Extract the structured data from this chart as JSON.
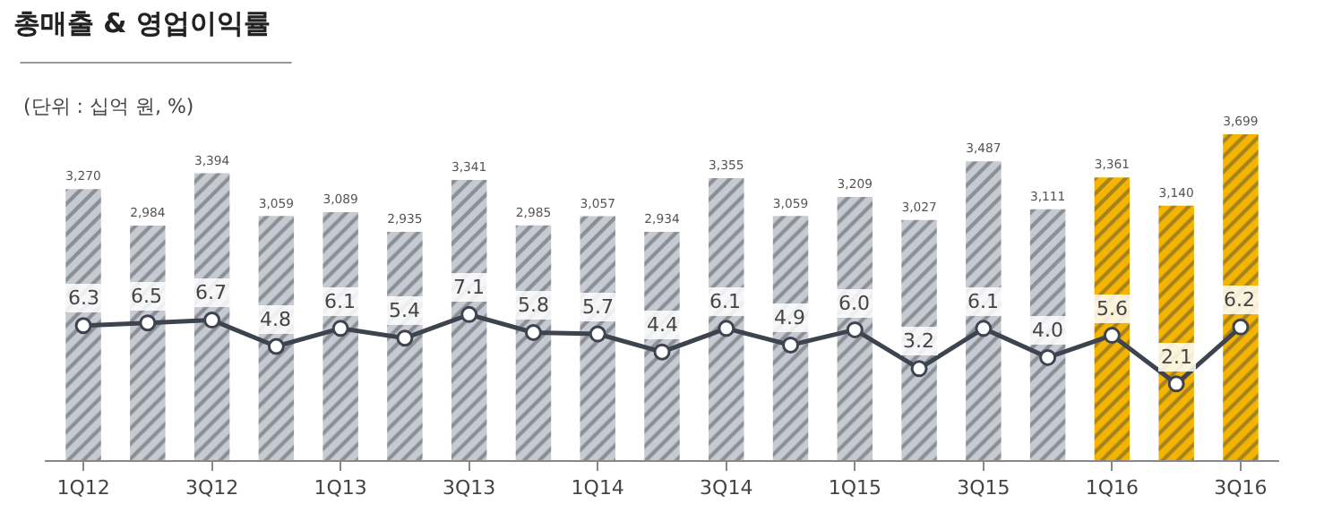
{
  "chart_data": {
    "type": "bar",
    "title": "총매출 & 영업이익률",
    "subtitle": "(단위 : 십억 원, %)",
    "categories": [
      "1Q12",
      null,
      "3Q12",
      null,
      "1Q13",
      null,
      "3Q13",
      null,
      "1Q14",
      null,
      "3Q14",
      null,
      "1Q15",
      null,
      "3Q15",
      null,
      "1Q16",
      null,
      "3Q16"
    ],
    "series": [
      {
        "colors": [
          "#c5cad3",
          "#c5cad3",
          "#c5cad3",
          "#c5cad3",
          "#c5cad3",
          "#c5cad3",
          "#c5cad3",
          "#c5cad3",
          "#c5cad3",
          "#c5cad3",
          "#c5cad3",
          "#c5cad3",
          "#c5cad3",
          "#c5cad3",
          "#c5cad3",
          "#c5cad3",
          "#f5b400",
          "#f5b400",
          "#f5b400"
        ],
        "values": [
          3270,
          2984,
          3394,
          3059,
          3089,
          2935,
          3341,
          2985,
          3057,
          2934,
          3355,
          3059,
          3209,
          3027,
          3487,
          3111,
          3361,
          3140,
          3699
        ],
        "value_labels": [
          "3,270",
          "2,984",
          "3,394",
          "3,059",
          "3,089",
          "2,935",
          "3,341",
          "2,985",
          "3,057",
          "2,934",
          "3,355",
          "3,059",
          "3,209",
          "3,027",
          "3,487",
          "3,111",
          "3,361",
          "3,140",
          "3,699"
        ]
      },
      {
        "type": "line",
        "axis": "y2",
        "color": "#3d4450",
        "values": [
          6.3,
          6.5,
          6.7,
          4.8,
          6.1,
          5.4,
          7.1,
          5.8,
          5.7,
          4.4,
          6.1,
          4.9,
          6.0,
          3.2,
          6.1,
          4.0,
          5.6,
          2.1,
          6.2
        ],
        "value_labels": [
          "6.3",
          "6.5",
          "6.7",
          "4.8",
          "6.1",
          "5.4",
          "7.1",
          "5.8",
          "5.7",
          "4.4",
          "6.1",
          "4.9",
          "6.0",
          "3.2",
          "6.1",
          "4.0",
          "5.6",
          "2.1",
          "6.2"
        ]
      }
    ],
    "legend": false,
    "marker": "circle",
    "line_style": "solid"
  }
}
